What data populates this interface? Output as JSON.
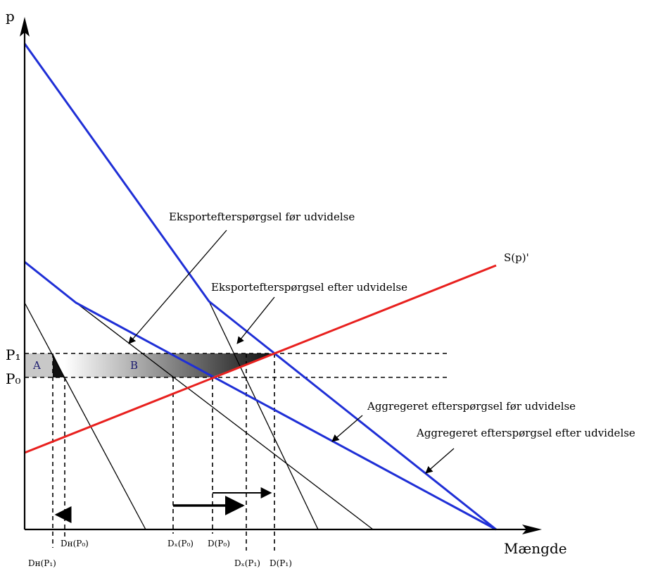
{
  "axes": {
    "y_label": "p",
    "x_label": "Mængde"
  },
  "price_levels": {
    "p1": "P₁",
    "p0": "P₀"
  },
  "areas": {
    "a": "A",
    "b": "B"
  },
  "curves": {
    "supply": "S(p)'",
    "export_before": "Eksportefterspørgsel før udvidelse",
    "export_after": "Eksportefterspørgsel efter udvidelse",
    "aggregate_before": "Aggregeret efterspørgsel før udvidelse",
    "aggregate_after": "Aggregeret efterspørgsel efter udvidelse"
  },
  "quantity_labels": {
    "dh_p0": "Dʜ(P₀)",
    "dh_p1": "Dʜ(P₁)",
    "dx_p0": "Dₓ(P₀)",
    "d_p0": "D(P₀)",
    "dx_p1": "Dₓ(P₁)",
    "d_p1": "D(P₁)"
  },
  "colors": {
    "supply": "#e8201e",
    "aggregate_demand": "#1f2fd6",
    "export_demand": "#000000",
    "dashed": "#000000",
    "area_fill_dark": "#1a1a1a"
  }
}
